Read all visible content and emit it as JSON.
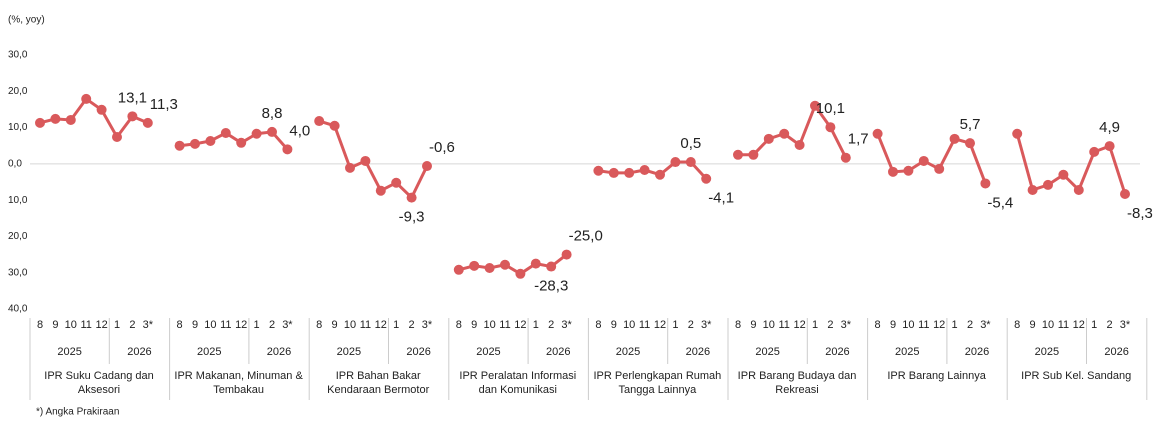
{
  "chart_data": {
    "type": "line",
    "unit_label": "(%, yoy)",
    "color": "#d9595b",
    "ylim": [
      -40,
      30
    ],
    "yticks": [
      {
        "value": 30,
        "label": "30,0"
      },
      {
        "value": 20,
        "label": "20,0"
      },
      {
        "value": 10,
        "label": "10,0"
      },
      {
        "value": 0,
        "label": "0,0"
      },
      {
        "value": -10,
        "label": "10,0"
      },
      {
        "value": -20,
        "label": "20,0"
      },
      {
        "value": -30,
        "label": "30,0"
      },
      {
        "value": -40,
        "label": "40,0"
      }
    ],
    "series": [
      {
        "name": "IPR Suku Cadang dan Aksesori",
        "categories": [
          "8",
          "9",
          "10",
          "11",
          "12",
          "1",
          "2",
          "3*"
        ],
        "years": [
          "2025",
          "2026"
        ],
        "values": [
          11.3,
          12.4,
          12.1,
          17.9,
          14.9,
          7.4,
          13.1,
          11.3
        ],
        "value_labels": [
          null,
          null,
          null,
          null,
          null,
          null,
          "13,1",
          "11,3"
        ]
      },
      {
        "name": "IPR Makanan, Minuman & Tembakau",
        "categories": [
          "8",
          "9",
          "10",
          "11",
          "12",
          "1",
          "2",
          "3*"
        ],
        "years": [
          "2025",
          "2026"
        ],
        "values": [
          5.0,
          5.5,
          6.3,
          8.5,
          5.8,
          8.3,
          8.8,
          4.0
        ],
        "value_labels": [
          null,
          null,
          null,
          null,
          null,
          null,
          "8,8",
          "4,0"
        ]
      },
      {
        "name": "IPR Bahan Bakar Kendaraan Bermotor",
        "categories": [
          "8",
          "9",
          "10",
          "11",
          "12",
          "1",
          "2",
          "3*"
        ],
        "years": [
          "2025",
          "2026"
        ],
        "values": [
          11.8,
          10.5,
          -1.1,
          0.8,
          -7.4,
          -5.2,
          -9.3,
          -0.6
        ],
        "value_labels": [
          null,
          null,
          null,
          null,
          null,
          null,
          "-9,3",
          "-0,6"
        ]
      },
      {
        "name": "IPR Peralatan Informasi dan Komunikasi",
        "categories": [
          "8",
          "9",
          "10",
          "11",
          "12",
          "1",
          "2",
          "3*"
        ],
        "years": [
          "2025",
          "2026"
        ],
        "values": [
          -29.2,
          -28.1,
          -28.7,
          -27.8,
          -30.3,
          -27.5,
          -28.3,
          -25.0
        ],
        "value_labels": [
          null,
          null,
          null,
          null,
          null,
          null,
          "-28,3",
          "-25,0"
        ]
      },
      {
        "name": "IPR Perlengkapan Rumah Tangga Lainnya",
        "categories": [
          "8",
          "9",
          "10",
          "11",
          "12",
          "1",
          "2",
          "3*"
        ],
        "years": [
          "2025",
          "2026"
        ],
        "values": [
          -1.9,
          -2.5,
          -2.5,
          -1.7,
          -3.0,
          0.5,
          0.5,
          -4.1
        ],
        "value_labels": [
          null,
          null,
          null,
          null,
          null,
          null,
          "0,5",
          "-4,1"
        ]
      },
      {
        "name": "IPR Barang Budaya dan Rekreasi",
        "categories": [
          "8",
          "9",
          "10",
          "11",
          "12",
          "1",
          "2",
          "3*"
        ],
        "years": [
          "2025",
          "2026"
        ],
        "values": [
          2.5,
          2.5,
          6.9,
          8.3,
          5.2,
          16.0,
          10.1,
          1.7
        ],
        "value_labels": [
          null,
          null,
          null,
          null,
          null,
          null,
          "10,1",
          "1,7"
        ]
      },
      {
        "name": "IPR Barang Lainnya",
        "categories": [
          "8",
          "9",
          "10",
          "11",
          "12",
          "1",
          "2",
          "3*"
        ],
        "years": [
          "2025",
          "2026"
        ],
        "values": [
          8.3,
          -2.2,
          -1.9,
          0.8,
          -1.4,
          6.9,
          5.7,
          -5.4
        ],
        "value_labels": [
          null,
          null,
          null,
          null,
          null,
          null,
          "5,7",
          "-5,4"
        ]
      },
      {
        "name": "IPR  Sub Kel. Sandang",
        "categories": [
          "8",
          "9",
          "10",
          "11",
          "12",
          "1",
          "2",
          "3*"
        ],
        "years": [
          "2025",
          "2026"
        ],
        "values": [
          8.3,
          -7.2,
          -5.8,
          -3.0,
          -7.2,
          3.3,
          4.9,
          -8.3
        ],
        "value_labels": [
          null,
          null,
          null,
          null,
          null,
          null,
          "4,9",
          "-8,3"
        ]
      }
    ],
    "footnote": "*) Angka Prakiraan"
  }
}
